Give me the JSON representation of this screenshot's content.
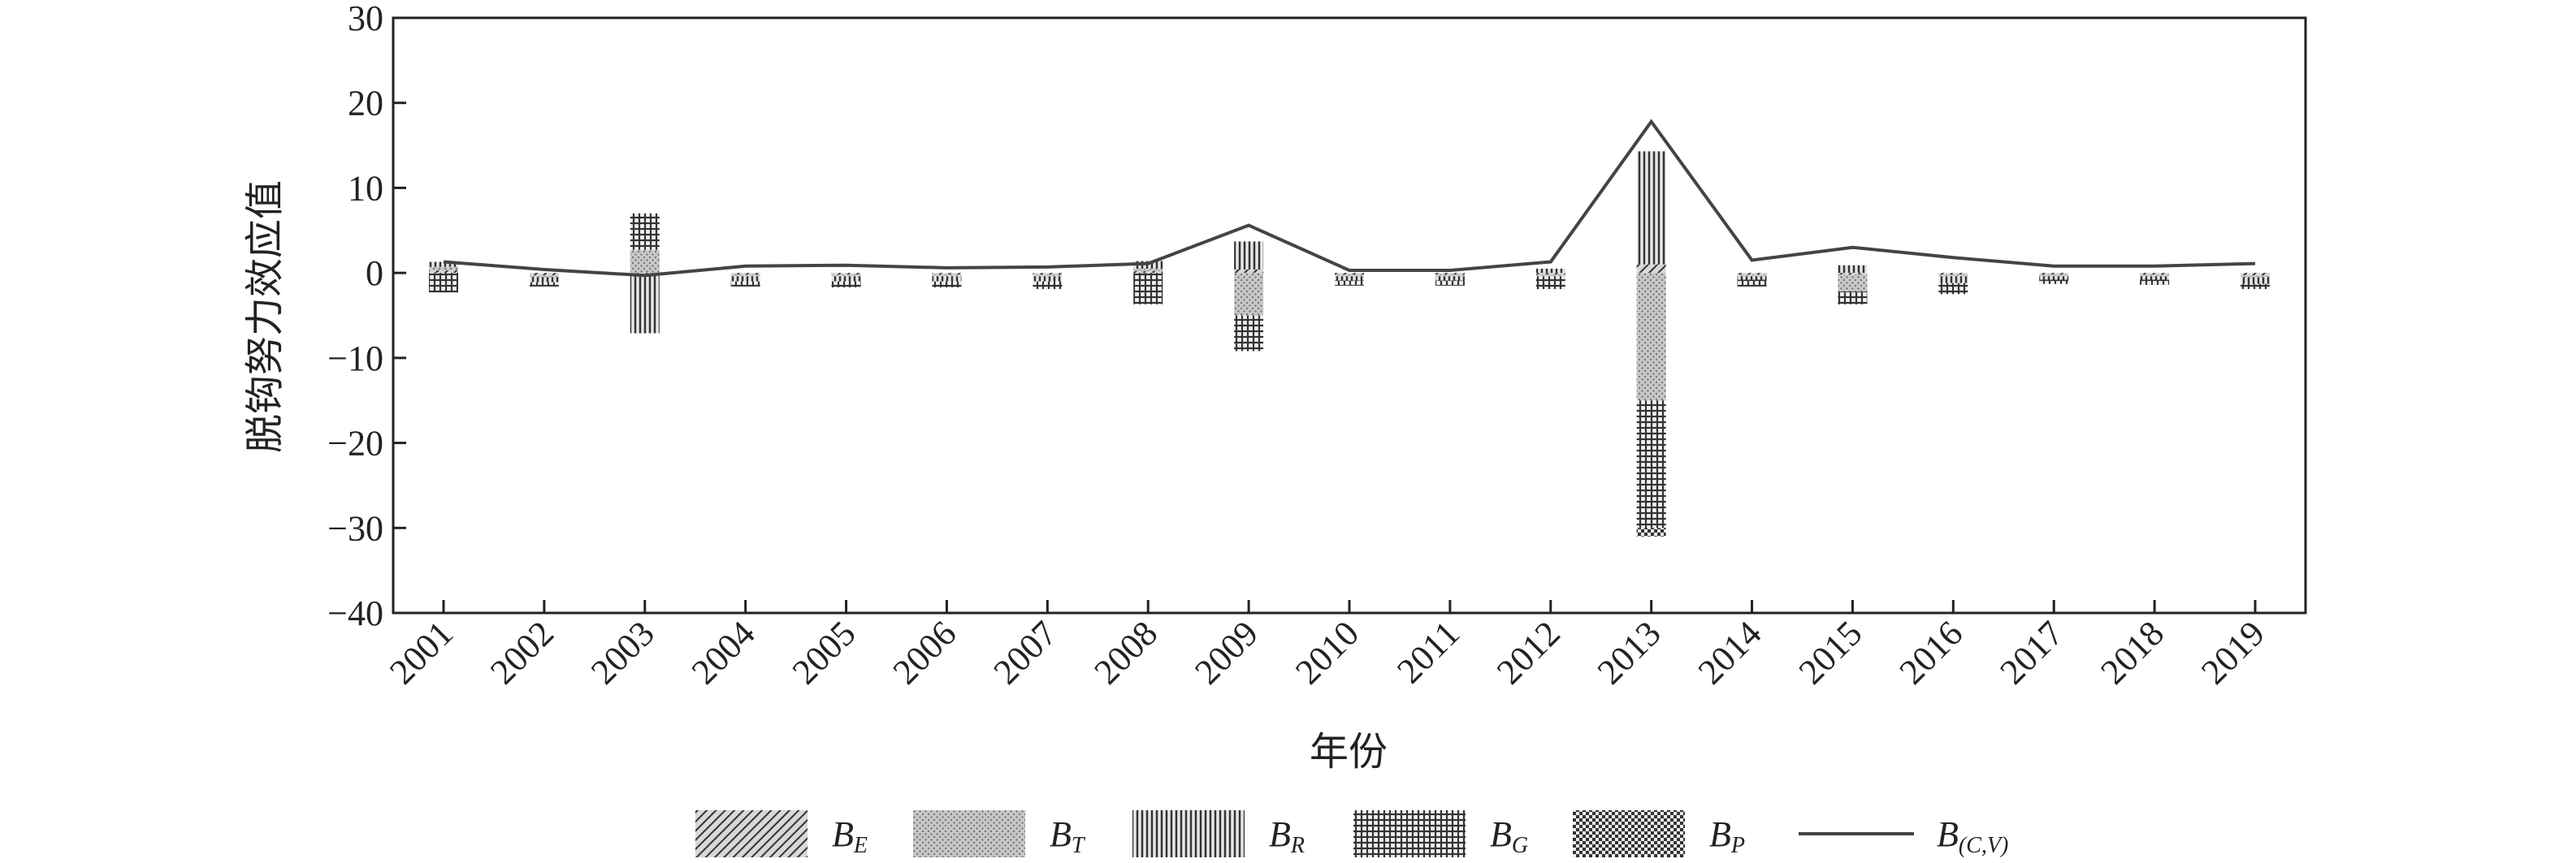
{
  "chart_data": {
    "type": "bar",
    "xlabel": "年份",
    "ylabel": "脱钩努力效应值",
    "ylim": [
      -40,
      30
    ],
    "yticks": [
      30,
      20,
      10,
      0,
      -10,
      -20,
      -30,
      -40
    ],
    "ytick_labels": [
      "30",
      "20",
      "10",
      "0",
      "−10",
      "−20",
      "−30",
      "−40"
    ],
    "grid": false,
    "legend_position": "bottom",
    "categories": [
      "2001",
      "2002",
      "2003",
      "2004",
      "2005",
      "2006",
      "2007",
      "2008",
      "2009",
      "2010",
      "2011",
      "2012",
      "2013",
      "2014",
      "2015",
      "2016",
      "2017",
      "2018",
      "2019"
    ],
    "series": [
      {
        "name": "B",
        "sub": "E",
        "pattern": "diag",
        "values": [
          0.3,
          -0.3,
          -0.3,
          -0.2,
          -0.2,
          -0.2,
          -0.2,
          0.2,
          0.4,
          -0.2,
          -0.2,
          -0.2,
          1.0,
          -0.2,
          -0.2,
          -0.2,
          -0.2,
          -0.2,
          -0.3
        ]
      },
      {
        "name": "B",
        "sub": "T",
        "pattern": "dots",
        "values": [
          0.4,
          -0.2,
          2.7,
          -0.2,
          -0.2,
          -0.2,
          -0.2,
          0.3,
          -5.0,
          -0.2,
          -0.2,
          -0.2,
          -15.0,
          -0.2,
          -2.0,
          -0.2,
          -0.2,
          -0.2,
          -0.2
        ]
      },
      {
        "name": "B",
        "sub": "R",
        "pattern": "vlines",
        "values": [
          0.6,
          -0.6,
          -6.8,
          -0.6,
          -0.6,
          -0.6,
          -0.6,
          0.9,
          3.3,
          -0.5,
          -0.5,
          0.5,
          13.3,
          -0.4,
          0.9,
          -0.8,
          -0.4,
          -0.4,
          -0.8
        ]
      },
      {
        "name": "B",
        "sub": "G",
        "pattern": "grid",
        "values": [
          -2.3,
          -0.5,
          4.3,
          -0.6,
          -0.7,
          -0.7,
          -0.9,
          -3.7,
          -4.2,
          -0.6,
          -0.6,
          -1.5,
          -15.0,
          -0.8,
          -1.5,
          -1.3,
          -0.5,
          -0.6,
          -0.6
        ]
      },
      {
        "name": "B",
        "sub": "P",
        "pattern": "checker",
        "values": [
          0,
          0,
          0,
          0,
          0,
          0,
          0,
          0,
          0,
          0,
          0,
          0,
          -1.0,
          0,
          0,
          0,
          0,
          0,
          0
        ]
      }
    ],
    "line": {
      "name": "B",
      "sub": "(C,V)",
      "values": [
        1.3,
        0.4,
        -0.3,
        0.8,
        0.9,
        0.6,
        0.7,
        1.1,
        5.6,
        0.3,
        0.3,
        1.3,
        17.8,
        1.5,
        3.0,
        1.8,
        0.8,
        0.8,
        1.1
      ]
    },
    "colors": {
      "axis": "#222222",
      "line": "#444444",
      "bar_fill": "#ffffff"
    }
  }
}
